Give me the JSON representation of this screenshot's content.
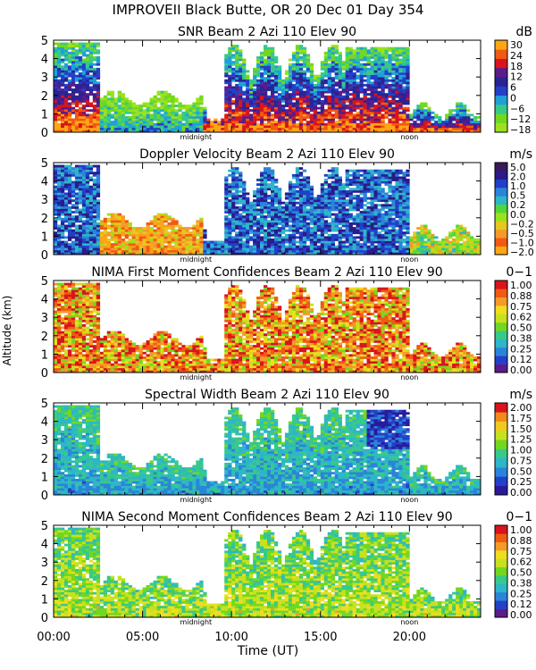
{
  "main_title": "IMPROVEII  Black Butte, OR  20 Dec 01 Day 354",
  "y_axis_label": "Altitude (km)",
  "x_axis_label": "Time (UT)",
  "x_ticks": [
    "00:00",
    "05:00",
    "10:00",
    "15:00",
    "20:00"
  ],
  "day_markers": [
    "midnight",
    "noon"
  ],
  "colors": {
    "snr": [
      "#9BE21E",
      "#72D81F",
      "#37C98A",
      "#1FA0D8",
      "#2340C8",
      "#2A2394",
      "#5A1C8A",
      "#D8151C",
      "#F05A12",
      "#FFA615"
    ],
    "doppler": [
      "#FFA615",
      "#F05A12",
      "#F59A28",
      "#E6C81E",
      "#9BE21E",
      "#54D63A",
      "#2DB6C8",
      "#2A84DA",
      "#2140C8",
      "#2A1A8A",
      "#3A1A5A"
    ],
    "conf": [
      "#5A1C8A",
      "#2340C8",
      "#2A84DA",
      "#2DB6C8",
      "#37C98A",
      "#72D81F",
      "#C8E11E",
      "#F0DD1E",
      "#F59A28",
      "#F05A12",
      "#D8151C"
    ],
    "width": [
      "#2A1A9A",
      "#2340C8",
      "#2A84DA",
      "#2DB6C8",
      "#37C98A",
      "#72D81F",
      "#C8E11E",
      "#F0C81E",
      "#F08A18",
      "#D8151C"
    ]
  },
  "panels": [
    {
      "title": "SNR Beam 2 Azi 110 Elev 90",
      "unit": "dB",
      "colorbar_labels": [
        "30",
        "24",
        "18",
        "12",
        "6",
        "0",
        "−6",
        "−12",
        "−18"
      ],
      "scale": "snr"
    },
    {
      "title": "Doppler Velocity Beam 2 Azi 110 Elev 90",
      "unit": "m/s",
      "colorbar_labels": [
        "5.0",
        "2.0",
        "1.0",
        "0.5",
        "0.2",
        "0.0",
        "−0.2",
        "−0.5",
        "−1.0",
        "−2.0"
      ],
      "scale": "doppler"
    },
    {
      "title": "NIMA First Moment Confidences Beam 2 Azi 110 Elev 90",
      "unit": "0−1",
      "colorbar_labels": [
        "1.00",
        "0.88",
        "0.75",
        "0.62",
        "0.50",
        "0.38",
        "0.25",
        "0.12",
        "0.00"
      ],
      "scale": "conf"
    },
    {
      "title": "Spectral Width Beam 2 Azi 110 Elev 90",
      "unit": "m/s",
      "colorbar_labels": [
        "2.00",
        "1.75",
        "1.50",
        "1.25",
        "1.00",
        "0.75",
        "0.50",
        "0.25",
        "0.00"
      ],
      "scale": "width"
    },
    {
      "title": "NIMA Second Moment Confidences Beam 2 Azi 110 Elev 90",
      "unit": "0−1",
      "colorbar_labels": [
        "1.00",
        "0.88",
        "0.75",
        "0.62",
        "0.50",
        "0.38",
        "0.25",
        "0.12",
        "0.00"
      ],
      "scale": "conf"
    }
  ],
  "chart_data": {
    "type": "heatmap",
    "title": "IMPROVEII  Black Butte, OR  20 Dec 01 Day 354",
    "xlabel": "Time (UT)",
    "ylabel": "Altitude (km)",
    "x_range_hours": [
      0,
      24
    ],
    "y_range_km": [
      0,
      5
    ],
    "y_ticks": [
      0,
      1,
      2,
      3,
      4,
      5
    ],
    "x_tick_hours": [
      0,
      5,
      10,
      15,
      20
    ],
    "midnight_hour": 8,
    "noon_hour": 20,
    "series": [
      {
        "name": "SNR",
        "unit": "dB",
        "range": [
          -18,
          30
        ]
      },
      {
        "name": "Doppler Velocity",
        "unit": "m/s",
        "range": [
          -2.0,
          5.0
        ]
      },
      {
        "name": "NIMA First Moment Confidences",
        "unit": "0-1",
        "range": [
          0.0,
          1.0
        ]
      },
      {
        "name": "Spectral Width",
        "unit": "m/s",
        "range": [
          0.0,
          2.0
        ]
      },
      {
        "name": "NIMA Second Moment Confidences",
        "unit": "0-1",
        "range": [
          0.0,
          1.0
        ]
      }
    ]
  }
}
